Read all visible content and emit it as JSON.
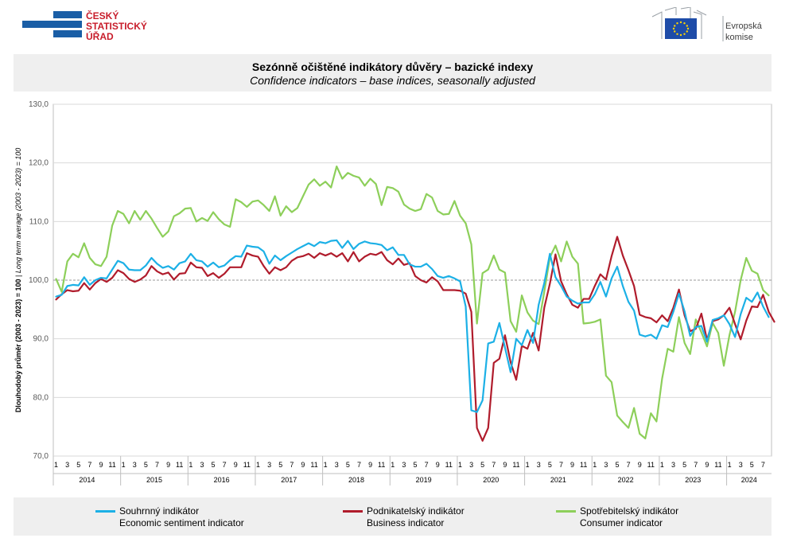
{
  "logos": {
    "csu": [
      "ČESKÝ",
      "STATISTICKÝ",
      "ÚŘAD"
    ],
    "ec": [
      "Evropská",
      "komise"
    ]
  },
  "title": {
    "cs": "Sezónně očištěné indikátory důvěry – bazické indexy",
    "en": "Confidence indicators – base indices, seasonally adjusted"
  },
  "legend": [
    {
      "cs": "Souhrnný indikátor",
      "en": "Economic sentiment indicator",
      "color": "#1cb0e6"
    },
    {
      "cs": "Podnikatelský indikátor",
      "en": "Business indicator",
      "color": "#b01c2c"
    },
    {
      "cs": "Spotřebitelský indikátor",
      "en": "Consumer indicator",
      "color": "#8dcf5a"
    }
  ],
  "chart_data": {
    "type": "line",
    "ylabel_cs": "Dlouhodobý průměr (2003 - 2023) = 100",
    "ylabel_en": "Long term average (2003 - 2023) = 100",
    "ylim": [
      70,
      130
    ],
    "yticks": [
      "70,0",
      "80,0",
      "90,0",
      "100,0",
      "110,0",
      "120,0",
      "130,0"
    ],
    "ytick_values": [
      70,
      80,
      90,
      100,
      110,
      120,
      130
    ],
    "reference_line": 100,
    "grid": true,
    "month_ticks": [
      "1",
      "3",
      "5",
      "7",
      "9",
      "11"
    ],
    "years": [
      "2014",
      "2015",
      "2016",
      "2017",
      "2018",
      "2019",
      "2020",
      "2021",
      "2022",
      "2023",
      "2024"
    ],
    "last_year_months": 8,
    "series": [
      {
        "name": "Souhrnný indikátor",
        "color": "#1cb0e6",
        "values": [
          97.2,
          97.5,
          99.0,
          99.2,
          99.1,
          100.5,
          99.2,
          100.0,
          100.4,
          100.3,
          101.8,
          103.3,
          102.9,
          101.8,
          101.7,
          101.7,
          102.5,
          103.8,
          102.8,
          102.1,
          102.4,
          101.8,
          102.9,
          103.2,
          104.5,
          103.4,
          103.2,
          102.3,
          103.0,
          102.2,
          102.5,
          103.4,
          104.1,
          104.0,
          105.9,
          105.7,
          105.6,
          104.9,
          102.8,
          104.2,
          103.4,
          104.1,
          104.7,
          105.3,
          105.8,
          106.3,
          105.8,
          106.5,
          106.3,
          106.7,
          106.8,
          105.5,
          106.7,
          105.3,
          106.2,
          106.6,
          106.3,
          106.2,
          106.0,
          105.1,
          105.6,
          104.3,
          104.3,
          102.7,
          102.3,
          102.3,
          102.8,
          101.9,
          100.7,
          100.4,
          100.7,
          100.3,
          99.8,
          95.5,
          77.8,
          77.5,
          79.5,
          89.2,
          89.5,
          92.7,
          88.5,
          84.3,
          90.0,
          88.9,
          91.5,
          89.3,
          95.8,
          99.5,
          104.5,
          100.5,
          99.0,
          97.2,
          96.5,
          96.0,
          96.2,
          96.2,
          97.6,
          99.7,
          97.2,
          100.3,
          102.3,
          99.0,
          96.3,
          94.8,
          90.7,
          90.4,
          90.7,
          90.0,
          92.3,
          92.0,
          94.6,
          97.7,
          94.7,
          90.5,
          92.0,
          92.2,
          89.5,
          93.2,
          93.5,
          94.0,
          92.5,
          90.3,
          94.2,
          97.0,
          96.3,
          97.9,
          95.5,
          93.7
        ]
      },
      {
        "name": "Podnikatelský indikátor",
        "color": "#b01c2c",
        "values": [
          96.7,
          97.6,
          98.3,
          98.1,
          98.2,
          99.5,
          98.4,
          99.5,
          100.2,
          99.7,
          100.4,
          101.7,
          101.2,
          100.2,
          99.7,
          100.1,
          100.8,
          102.4,
          101.5,
          101.0,
          101.3,
          100.1,
          101.1,
          101.2,
          103.0,
          102.2,
          102.1,
          100.7,
          101.2,
          100.4,
          101.1,
          102.2,
          102.2,
          102.2,
          104.6,
          104.2,
          104.0,
          102.4,
          101.1,
          102.2,
          101.7,
          102.2,
          103.3,
          103.9,
          104.1,
          104.5,
          103.8,
          104.6,
          104.2,
          104.6,
          104.0,
          104.6,
          103.2,
          104.8,
          103.2,
          104.0,
          104.5,
          104.3,
          104.8,
          103.4,
          102.7,
          103.7,
          102.6,
          102.9,
          100.7,
          100.0,
          99.6,
          100.5,
          99.8,
          98.3,
          98.3,
          98.3,
          98.2,
          97.7,
          94.6,
          74.8,
          72.6,
          74.8,
          85.9,
          86.6,
          90.6,
          86.0,
          83.0,
          88.8,
          88.3,
          91.0,
          88.0,
          95.3,
          99.4,
          104.4,
          99.8,
          97.6,
          95.8,
          95.3,
          96.8,
          96.8,
          99.0,
          101.0,
          100.1,
          104.1,
          107.4,
          104.2,
          101.7,
          99.0,
          94.1,
          93.7,
          93.5,
          92.8,
          94.0,
          93.0,
          95.3,
          98.4,
          94.0,
          91.3,
          91.7,
          94.3,
          89.8,
          93.0,
          93.3,
          94.0,
          95.3,
          92.5,
          89.9,
          93.1,
          95.5,
          95.4,
          97.5,
          94.6,
          92.9
        ]
      },
      {
        "name": "Spotřebitelský indikátor",
        "color": "#8dcf5a",
        "values": [
          100.2,
          98.0,
          103.2,
          104.5,
          103.9,
          106.3,
          103.8,
          102.7,
          102.4,
          104.0,
          109.3,
          111.8,
          111.3,
          109.7,
          111.8,
          110.3,
          111.8,
          110.5,
          108.9,
          107.4,
          108.3,
          110.9,
          111.4,
          112.2,
          112.3,
          110.0,
          110.6,
          110.1,
          111.6,
          110.4,
          109.5,
          109.1,
          113.8,
          113.3,
          112.5,
          113.4,
          113.6,
          112.8,
          111.8,
          114.3,
          111.0,
          112.6,
          111.6,
          112.3,
          114.3,
          116.3,
          117.2,
          116.1,
          116.8,
          115.8,
          119.4,
          117.3,
          118.3,
          117.8,
          117.5,
          116.1,
          117.3,
          116.4,
          112.8,
          115.9,
          115.7,
          115.1,
          112.9,
          112.2,
          111.8,
          112.1,
          114.7,
          114.1,
          111.8,
          111.2,
          111.3,
          113.5,
          111.0,
          109.7,
          106.1,
          92.6,
          101.2,
          101.8,
          104.2,
          101.8,
          101.3,
          93.0,
          91.2,
          97.4,
          94.5,
          93.1,
          92.5,
          98.0,
          103.9,
          105.9,
          103.2,
          106.6,
          104.0,
          102.8,
          92.6,
          92.7,
          92.9,
          93.3,
          83.7,
          82.6,
          76.9,
          75.8,
          74.8,
          78.2,
          73.8,
          73.0,
          77.3,
          75.9,
          83.2,
          88.3,
          87.8,
          93.7,
          89.3,
          87.4,
          93.3,
          91.1,
          88.7,
          92.7,
          91.0,
          85.4,
          90.6,
          94.6,
          100.0,
          103.8,
          101.6,
          101.1,
          98.3,
          97.4
        ]
      }
    ]
  }
}
